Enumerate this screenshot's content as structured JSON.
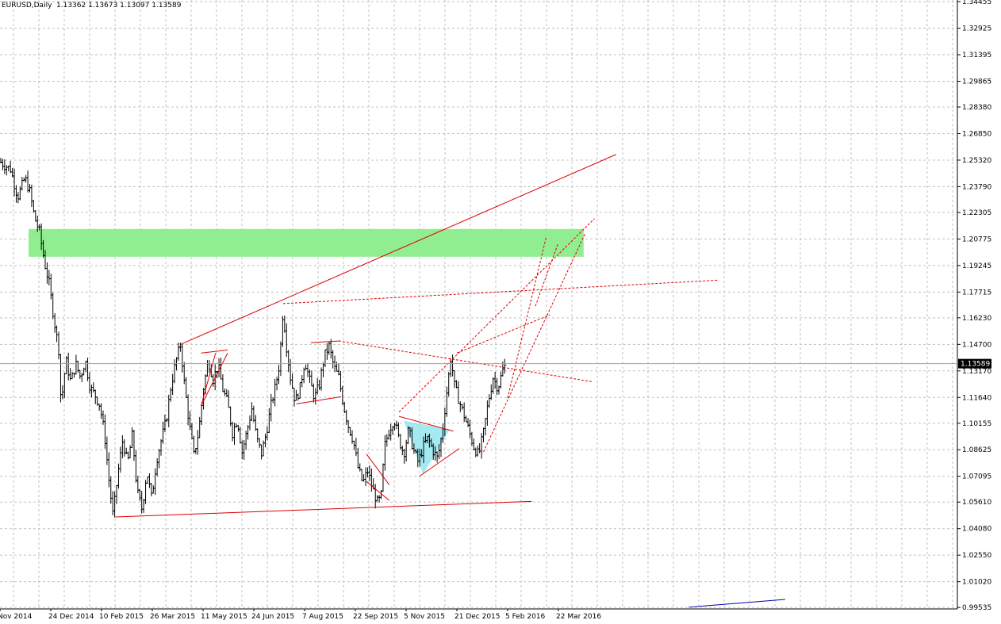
{
  "window": {
    "symbol_label": "EURUSD,Daily",
    "ohlc_label": "1.13362 1.13673 1.13097 1.13589"
  },
  "colors": {
    "background": "#ffffff",
    "grid": "#c0c0c0",
    "bars": "#000000",
    "trendline": "#dd0000",
    "zone": "#90ee90",
    "triangle_fill": "#8ee5ee",
    "price_marker_bg": "#000000",
    "price_marker_text": "#ffffff",
    "bottom_line": "#0000aa"
  },
  "chart_data": {
    "type": "ohlc",
    "title": "EURUSD,Daily",
    "current_price": 1.13589,
    "current_price_label": "1.13589",
    "y_ticks": [
      "1.34455",
      "1.32925",
      "1.31395",
      "1.29865",
      "1.28380",
      "1.26850",
      "1.25320",
      "1.23790",
      "1.22305",
      "1.20775",
      "1.19245",
      "1.17715",
      "1.16230",
      "1.14700",
      "1.13170",
      "1.11640",
      "1.10155",
      "1.08625",
      "1.07095",
      "1.05610",
      "1.04080",
      "1.02550",
      "1.01020",
      "0.99535"
    ],
    "x_ticks": [
      "Nov 2014",
      "24 Dec 2014",
      "10 Feb 2015",
      "26 Mar 2015",
      "11 May 2015",
      "24 Jun 2015",
      "7 Aug 2015",
      "22 Sep 2015",
      "5 Nov 2015",
      "21 Dec 2015",
      "5 Feb 2016",
      "22 Mar 2016"
    ],
    "x_range_bars": [
      0,
      480
    ],
    "y_range": [
      0.9945,
      1.3455
    ],
    "grid": true,
    "price_path": [
      [
        0,
        1.252
      ],
      [
        8,
        1.248
      ],
      [
        14,
        1.232
      ],
      [
        20,
        1.243
      ],
      [
        24,
        1.235
      ],
      [
        28,
        1.22
      ],
      [
        32,
        1.212
      ],
      [
        36,
        1.195
      ],
      [
        40,
        1.182
      ],
      [
        44,
        1.162
      ],
      [
        48,
        1.144
      ],
      [
        50,
        1.112
      ],
      [
        54,
        1.138
      ],
      [
        58,
        1.125
      ],
      [
        62,
        1.136
      ],
      [
        66,
        1.128
      ],
      [
        70,
        1.138
      ],
      [
        74,
        1.122
      ],
      [
        78,
        1.118
      ],
      [
        82,
        1.112
      ],
      [
        86,
        1.095
      ],
      [
        90,
        1.066
      ],
      [
        93,
        1.048
      ],
      [
        97,
        1.072
      ],
      [
        101,
        1.092
      ],
      [
        105,
        1.078
      ],
      [
        109,
        1.095
      ],
      [
        113,
        1.062
      ],
      [
        117,
        1.052
      ],
      [
        121,
        1.074
      ],
      [
        125,
        1.058
      ],
      [
        129,
        1.08
      ],
      [
        133,
        1.092
      ],
      [
        137,
        1.103
      ],
      [
        141,
        1.123
      ],
      [
        145,
        1.137
      ],
      [
        149,
        1.147
      ],
      [
        152,
        1.125
      ],
      [
        156,
        1.102
      ],
      [
        160,
        1.083
      ],
      [
        164,
        1.097
      ],
      [
        168,
        1.122
      ],
      [
        172,
        1.138
      ],
      [
        176,
        1.127
      ],
      [
        180,
        1.135
      ],
      [
        184,
        1.121
      ],
      [
        188,
        1.113
      ],
      [
        192,
        1.096
      ],
      [
        196,
        1.104
      ],
      [
        200,
        1.085
      ],
      [
        204,
        1.097
      ],
      [
        208,
        1.11
      ],
      [
        212,
        1.093
      ],
      [
        216,
        1.084
      ],
      [
        220,
        1.096
      ],
      [
        224,
        1.112
      ],
      [
        228,
        1.124
      ],
      [
        231,
        1.136
      ],
      [
        234,
        1.168
      ],
      [
        236,
        1.15
      ],
      [
        240,
        1.128
      ],
      [
        244,
        1.114
      ],
      [
        248,
        1.122
      ],
      [
        252,
        1.138
      ],
      [
        256,
        1.126
      ],
      [
        260,
        1.116
      ],
      [
        264,
        1.124
      ],
      [
        268,
        1.14
      ],
      [
        272,
        1.146
      ],
      [
        276,
        1.134
      ],
      [
        280,
        1.128
      ],
      [
        284,
        1.112
      ],
      [
        288,
        1.1
      ],
      [
        292,
        1.092
      ],
      [
        296,
        1.076
      ],
      [
        300,
        1.067
      ],
      [
        304,
        1.074
      ],
      [
        308,
        1.064
      ],
      [
        312,
        1.056
      ],
      [
        315,
        1.058
      ],
      [
        318,
        1.088
      ],
      [
        322,
        1.098
      ],
      [
        326,
        1.104
      ],
      [
        330,
        1.092
      ],
      [
        334,
        1.084
      ],
      [
        338,
        1.098
      ],
      [
        342,
        1.086
      ],
      [
        346,
        1.079
      ],
      [
        350,
        1.088
      ],
      [
        354,
        1.093
      ],
      [
        358,
        1.086
      ],
      [
        362,
        1.081
      ],
      [
        366,
        1.097
      ],
      [
        370,
        1.122
      ],
      [
        373,
        1.14
      ],
      [
        376,
        1.123
      ],
      [
        380,
        1.114
      ],
      [
        384,
        1.106
      ],
      [
        388,
        1.097
      ],
      [
        392,
        1.088
      ],
      [
        396,
        1.083
      ],
      [
        400,
        1.096
      ],
      [
        404,
        1.114
      ],
      [
        408,
        1.128
      ],
      [
        412,
        1.122
      ],
      [
        416,
        1.132
      ],
      [
        419,
        1.136
      ]
    ],
    "zones": [
      {
        "from_bar": 23,
        "to_bar": 483,
        "y_low": 1.1975,
        "y_high": 1.2135
      }
    ],
    "trendlines": [
      {
        "style": "solid",
        "p1": [
          149,
          1.147
        ],
        "p2": [
          510,
          1.2565
        ]
      },
      {
        "style": "solid",
        "p1": [
          95,
          1.0475
        ],
        "p2": [
          440,
          1.0565
        ]
      },
      {
        "style": "solid",
        "p1": [
          166,
          1.1116
        ],
        "p2": [
          188,
          1.142
        ]
      },
      {
        "style": "solid",
        "p1": [
          166,
          1.1116
        ],
        "p2": [
          178,
          1.142
        ]
      },
      {
        "style": "solid",
        "p1": [
          166,
          1.142
        ],
        "p2": [
          188,
          1.1438
        ]
      },
      {
        "style": "solid",
        "p1": [
          257,
          1.148
        ],
        "p2": [
          281,
          1.149
        ]
      },
      {
        "style": "solid",
        "p1": [
          245,
          1.1127
        ],
        "p2": [
          282,
          1.1168
        ]
      },
      {
        "style": "solid",
        "p1": [
          303,
          1.0838
        ],
        "p2": [
          322,
          1.066
        ]
      },
      {
        "style": "solid",
        "p1": [
          303,
          1.068
        ],
        "p2": [
          322,
          1.057
        ]
      },
      {
        "style": "solid",
        "p1": [
          330,
          1.1055
        ],
        "p2": [
          375,
          1.097
        ]
      },
      {
        "style": "solid",
        "p1": [
          347,
          1.071
        ],
        "p2": [
          380,
          1.087
        ]
      },
      {
        "style": "dashed",
        "p1": [
          234,
          1.1705
        ],
        "p2": [
          594,
          1.184
        ]
      },
      {
        "style": "dashed",
        "p1": [
          280,
          1.149
        ],
        "p2": [
          490,
          1.1255
        ]
      },
      {
        "style": "dashed",
        "p1": [
          330,
          1.108
        ],
        "p2": [
          492,
          1.2195
        ]
      },
      {
        "style": "dashed",
        "p1": [
          400,
          1.085
        ],
        "p2": [
          484,
          1.2105
        ]
      },
      {
        "style": "dashed",
        "p1": [
          420,
          1.116
        ],
        "p2": [
          452,
          1.209
        ]
      },
      {
        "style": "dashed",
        "p1": [
          378,
          1.142
        ],
        "p2": [
          455,
          1.164
        ]
      },
      {
        "style": "dashed",
        "p1": [
          443,
          1.169
        ],
        "p2": [
          462,
          1.2055
        ]
      }
    ],
    "triangle_pattern": {
      "fill": "#8ee5ee",
      "points": [
        [
          334,
          1.103
        ],
        [
          372,
          1.098
        ],
        [
          350,
          1.072
        ]
      ]
    },
    "bottom_line": {
      "p1": [
        570,
        0.9955
      ],
      "p2": [
        650,
        1.0
      ]
    }
  }
}
